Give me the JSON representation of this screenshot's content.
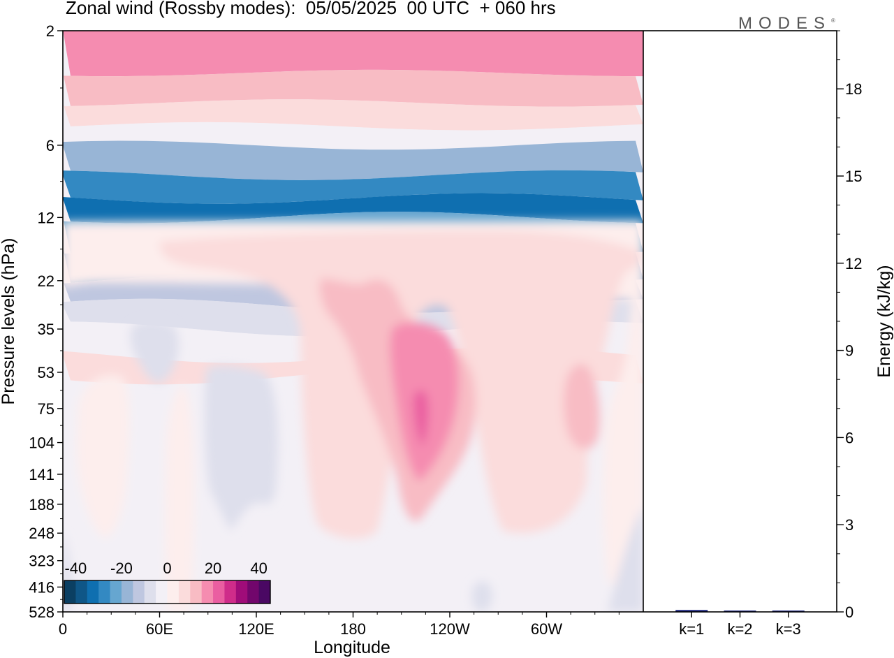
{
  "title": "Zonal wind (Rossby modes):  05/05/2025  00 UTC  + 060 hrs",
  "brand": "MODES",
  "brand_mark": "®",
  "colors": {
    "neg": [
      "#0b3f62",
      "#0f5687",
      "#0f6fb0",
      "#3389c2",
      "#66a6d0",
      "#98b5d6",
      "#bfc7e0",
      "#dedfec",
      "#f3f0f6"
    ],
    "pos": [
      "#fdeeed",
      "#fbdcdc",
      "#f8bcc4",
      "#f58cb0",
      "#ea5ea1",
      "#cf2c8a",
      "#a00c79",
      "#72066c",
      "#4a0863"
    ],
    "bar": "#1a237e"
  },
  "chart_data": [
    {
      "type": "heatmap",
      "subtype": "filled-contour",
      "title": "Zonal wind (Rossby modes):  05/05/2025  00 UTC  + 060 hrs",
      "xlabel": "Longitude",
      "ylabel": "Pressure levels (hPa)",
      "x_ticks": [
        "0",
        "60E",
        "120E",
        "180",
        "120W",
        "60W"
      ],
      "y_ticks": [
        "2",
        "6",
        "12",
        "22",
        "35",
        "53",
        "75",
        "104",
        "141",
        "188",
        "248",
        "323",
        "416",
        "528"
      ],
      "colorbar": {
        "ticks": [
          "-40",
          "-20",
          "0",
          "20",
          "40"
        ],
        "range": [
          -45,
          45
        ],
        "step": 5
      },
      "upper_bands": [
        {
          "level": "2",
          "value": 15
        },
        {
          "level": "3",
          "value": 10
        },
        {
          "level": "4",
          "value": 5
        },
        {
          "level": "5",
          "value": -5
        },
        {
          "level": "6",
          "value": -20
        },
        {
          "level": "8",
          "value": -30
        },
        {
          "level": "10",
          "value": -35
        },
        {
          "level": "12",
          "value": -25
        },
        {
          "level": "16",
          "value": -20
        },
        {
          "level": "22",
          "value": -15
        },
        {
          "level": "28",
          "value": -10
        },
        {
          "level": "35",
          "value": -5
        },
        {
          "level": "45",
          "value": 5
        }
      ],
      "features": [
        {
          "lon": "130W",
          "level": "141",
          "value": 25
        },
        {
          "lon": "50W",
          "level": "141",
          "value": 15
        },
        {
          "lon": "50E",
          "level": "104",
          "value": -5
        },
        {
          "lon": "100E",
          "level": "188",
          "value": -5
        }
      ]
    },
    {
      "type": "bar",
      "categories": [
        "k=1",
        "k=2",
        "k=3"
      ],
      "values": [
        0.03,
        0.01,
        0.01
      ],
      "ylabel": "Energy (kJ/kg)",
      "y_ticks": [
        "0",
        "3",
        "6",
        "9",
        "12",
        "15",
        "18"
      ],
      "ylim": [
        0,
        20
      ]
    }
  ]
}
